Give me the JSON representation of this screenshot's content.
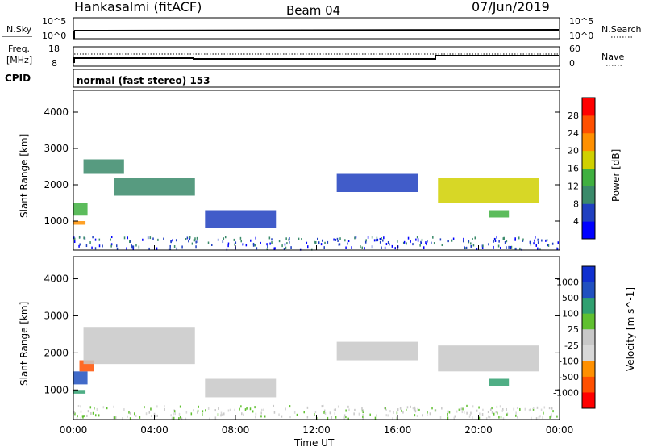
{
  "header": {
    "station": "Hankasalmi (fitACF)",
    "beam": "Beam 04",
    "date": "07/Jun/2019"
  },
  "top_panels": {
    "nsky": {
      "left_label": "N.Sky",
      "right_label": "N.Search",
      "tick_hi": "10^5",
      "tick_lo": "10^0"
    },
    "freq": {
      "left_label_1": "Freq.",
      "left_label_2": "[MHz]",
      "tick_hi": "18",
      "tick_lo": "8",
      "right_label": "Nave",
      "right_tick_hi": "60",
      "right_tick_lo": "0"
    },
    "cpid": {
      "label": "CPID",
      "mode_text": "normal (fast stereo) 153"
    }
  },
  "colors": {
    "power_scale": [
      "#0000ff",
      "#2040c0",
      "#3a8a6a",
      "#40b040",
      "#d0d000",
      "#ff9000",
      "#ff5000",
      "#ff0000"
    ],
    "velocity_scale": [
      "#ff0000",
      "#ff5000",
      "#ff9000",
      "#d8d8d8",
      "#c8c8c8",
      "#60c030",
      "#30a070",
      "#2050c0",
      "#1030d0"
    ]
  },
  "chart_data": [
    {
      "type": "heatmap",
      "name": "power",
      "xlabel": "",
      "ylabel": "Slant Range [km]",
      "yticks": [
        "1000",
        "2000",
        "3000",
        "4000"
      ],
      "ylim": [
        200,
        4600
      ],
      "colorbar": {
        "label": "Power [dB]",
        "ticks": [
          "4",
          "8",
          "12",
          "16",
          "20",
          "24",
          "28"
        ],
        "range": [
          0,
          32
        ]
      },
      "echo_bands": [
        {
          "t_start": 0.0,
          "t_end": 0.6,
          "range_start": 900,
          "range_end": 1000,
          "power": 20
        },
        {
          "t_start": 0.0,
          "t_end": 0.7,
          "range_start": 1150,
          "range_end": 1500,
          "power": 12
        },
        {
          "t_start": 0.5,
          "t_end": 2.5,
          "range_start": 2300,
          "range_end": 2700,
          "power": 8
        },
        {
          "t_start": 2.0,
          "t_end": 6.0,
          "range_start": 1700,
          "range_end": 2200,
          "power": 10
        },
        {
          "t_start": 6.5,
          "t_end": 10.0,
          "range_start": 800,
          "range_end": 1300,
          "power": 6
        },
        {
          "t_start": 13.0,
          "t_end": 17.0,
          "range_start": 1800,
          "range_end": 2300,
          "power": 7
        },
        {
          "t_start": 18.0,
          "t_end": 23.0,
          "range_start": 1500,
          "range_end": 2200,
          "power": 16
        },
        {
          "t_start": 20.5,
          "t_end": 21.5,
          "range_start": 1100,
          "range_end": 1300,
          "power": 12
        }
      ]
    },
    {
      "type": "heatmap",
      "name": "velocity",
      "xlabel": "Time UT",
      "ylabel": "Slant Range [km]",
      "xticks": [
        "00:00",
        "04:00",
        "08:00",
        "12:00",
        "16:00",
        "20:00",
        "00:00"
      ],
      "xlim": [
        0,
        24
      ],
      "yticks": [
        "1000",
        "2000",
        "3000",
        "4000"
      ],
      "ylim": [
        200,
        4600
      ],
      "colorbar": {
        "label": "Velocity [m s^-1]",
        "ticks": [
          "1000",
          "500",
          "100",
          "25",
          "-25",
          "-100",
          "-500",
          "-1000"
        ]
      },
      "echo_bands": [
        {
          "t_start": 0.0,
          "t_end": 0.6,
          "range_start": 900,
          "range_end": 1000,
          "velocity": 100
        },
        {
          "t_start": 0.0,
          "t_end": 0.7,
          "range_start": 1150,
          "range_end": 1500,
          "velocity": 500
        },
        {
          "t_start": 0.3,
          "t_end": 1.0,
          "range_start": 1500,
          "range_end": 1800,
          "velocity": -200
        },
        {
          "t_start": 0.5,
          "t_end": 6.0,
          "range_start": 1700,
          "range_end": 2700,
          "velocity": 0
        },
        {
          "t_start": 6.5,
          "t_end": 10.0,
          "range_start": 800,
          "range_end": 1300,
          "velocity": 0
        },
        {
          "t_start": 13.0,
          "t_end": 17.0,
          "range_start": 1800,
          "range_end": 2300,
          "velocity": 0
        },
        {
          "t_start": 18.0,
          "t_end": 23.0,
          "range_start": 1500,
          "range_end": 2200,
          "velocity": 0
        },
        {
          "t_start": 20.5,
          "t_end": 21.5,
          "range_start": 1100,
          "range_end": 1300,
          "velocity": 100
        }
      ]
    }
  ]
}
